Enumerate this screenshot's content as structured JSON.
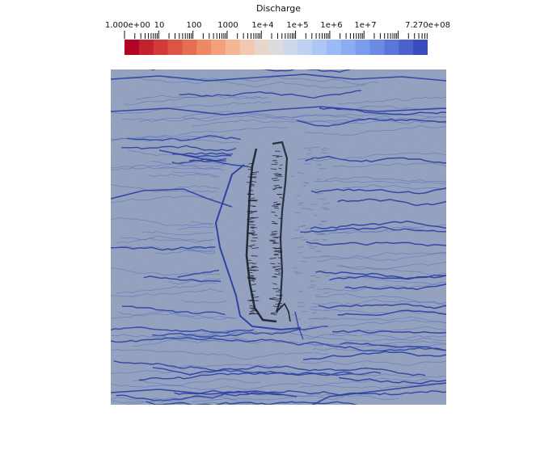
{
  "colorbar": {
    "title": "Discharge",
    "scale": "log",
    "range": [
      1,
      727000000
    ],
    "labels": [
      {
        "text": "1.000e+00",
        "value": 1
      },
      {
        "text": "10",
        "value": 10
      },
      {
        "text": "100",
        "value": 100
      },
      {
        "text": "1000",
        "value": 1000
      },
      {
        "text": "1e+4",
        "value": 10000
      },
      {
        "text": "1e+5",
        "value": 100000
      },
      {
        "text": "1e+6",
        "value": 1000000
      },
      {
        "text": "1e+7",
        "value": 10000000
      },
      {
        "text": "7.270e+08",
        "value": 727000000
      }
    ],
    "colors": {
      "low": "#b40426",
      "mid": "#dddddd",
      "high": "#3b4cc0"
    }
  },
  "render": {
    "background": "#ffffff",
    "terrain_base": "#99a7c4",
    "channel_color": "#2a3ea3",
    "scarp_color": "#1a1d2a"
  }
}
